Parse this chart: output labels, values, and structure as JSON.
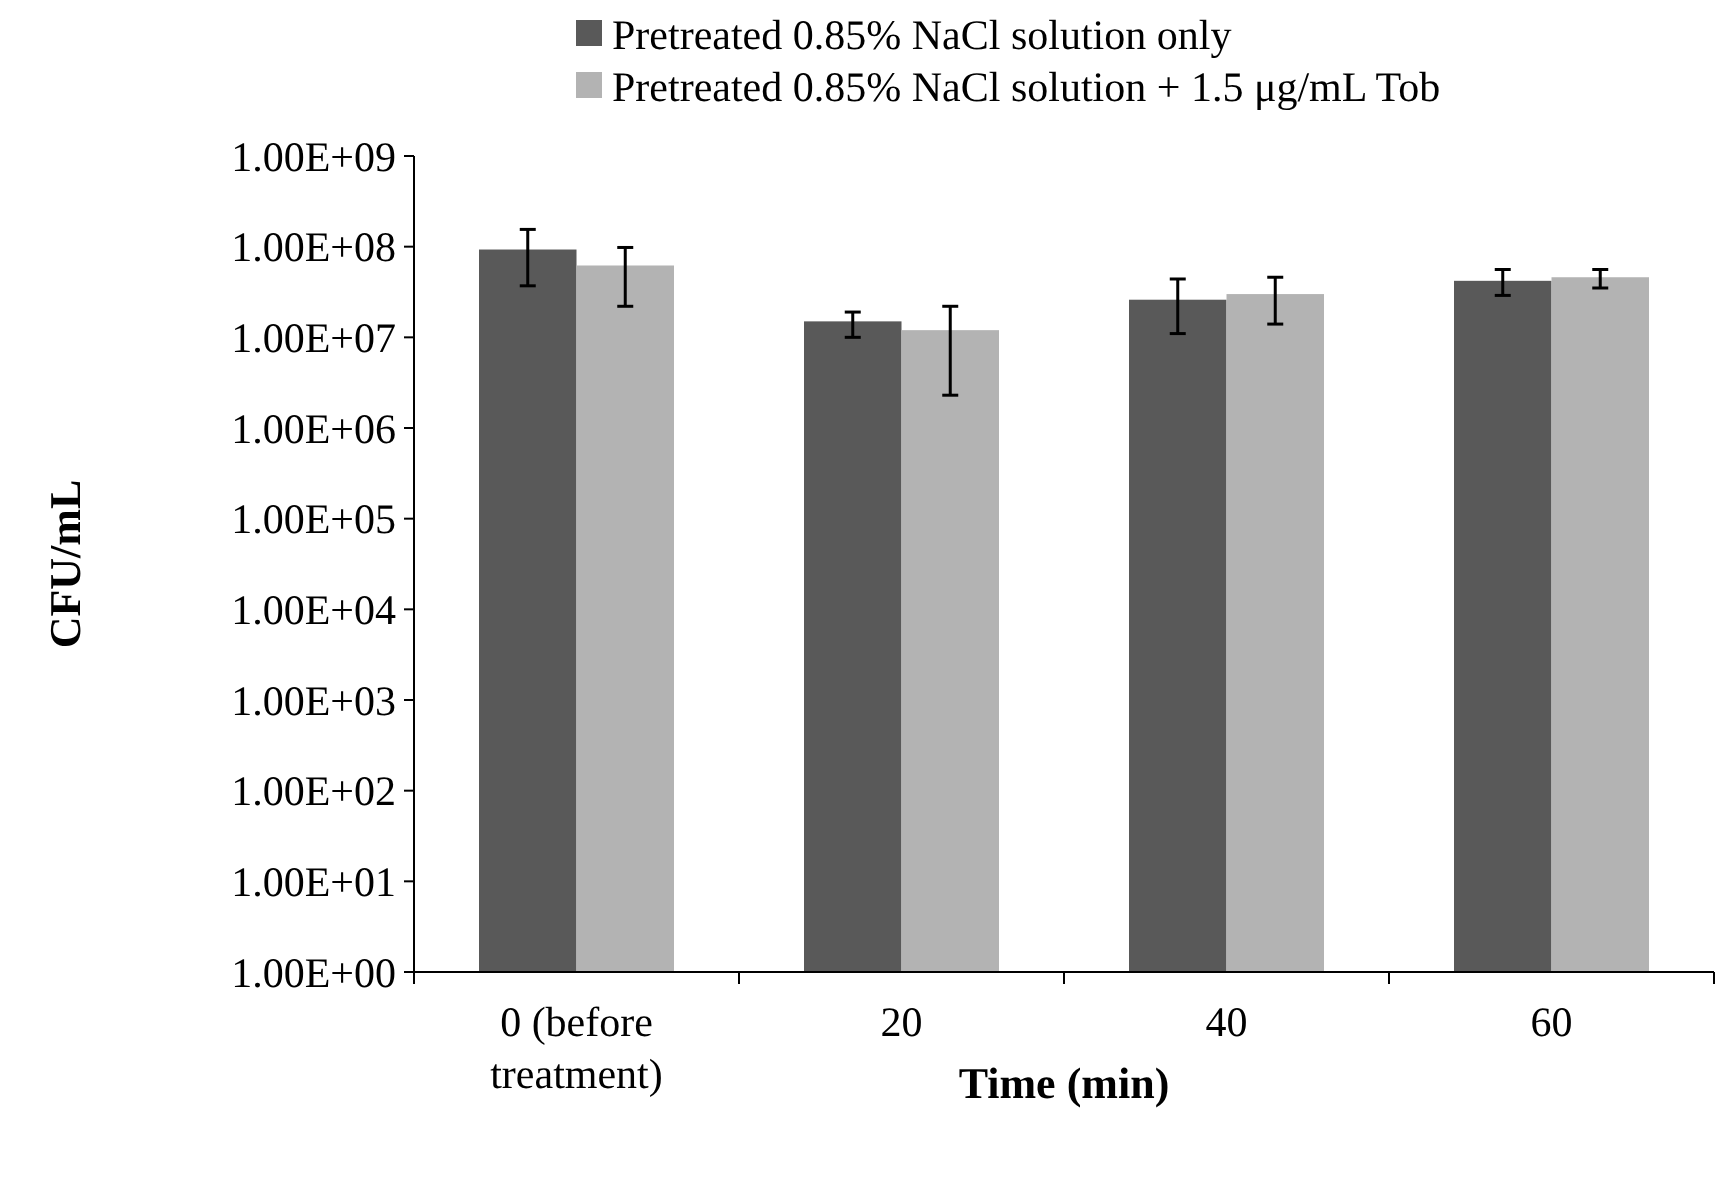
{
  "chart_data": {
    "type": "bar",
    "xlabel": "Time (min)",
    "ylabel": "CFU/mL",
    "categories": [
      "0 (before treatment)",
      "20",
      "40",
      "60"
    ],
    "series": [
      {
        "name": "Pretreated 0.85% NaCl solution only",
        "color": "#595959",
        "values": [
          93000000,
          15000000,
          26000000,
          42000000
        ],
        "errors": [
          [
            37000000,
            155000000
          ],
          [
            10000000,
            19000000
          ],
          [
            11000000,
            44000000
          ],
          [
            29000000,
            56000000
          ]
        ]
      },
      {
        "name": "Pretreated 0.85% NaCl solution + 1.5 μg/mL Tob",
        "color": "#b3b3b3",
        "values": [
          62000000,
          12000000,
          30000000,
          46000000
        ],
        "errors": [
          [
            22000000,
            98000000
          ],
          [
            2300000,
            22000000
          ],
          [
            14000000,
            46000000
          ],
          [
            35000000,
            56000000
          ]
        ]
      }
    ],
    "log": true,
    "ylim": [
      1,
      1000000000
    ],
    "yticks": [
      {
        "value": 1,
        "label": "1.00E+00"
      },
      {
        "value": 10,
        "label": "1.00E+01"
      },
      {
        "value": 100,
        "label": "1.00E+02"
      },
      {
        "value": 1000,
        "label": "1.00E+03"
      },
      {
        "value": 10000,
        "label": "1.00E+04"
      },
      {
        "value": 100000,
        "label": "1.00E+05"
      },
      {
        "value": 1000000,
        "label": "1.00E+06"
      },
      {
        "value": 10000000,
        "label": "1.00E+07"
      },
      {
        "value": 100000000,
        "label": "1.00E+08"
      },
      {
        "value": 1000000000,
        "label": "1.00E+09"
      }
    ],
    "legend": "top",
    "grid": false
  }
}
